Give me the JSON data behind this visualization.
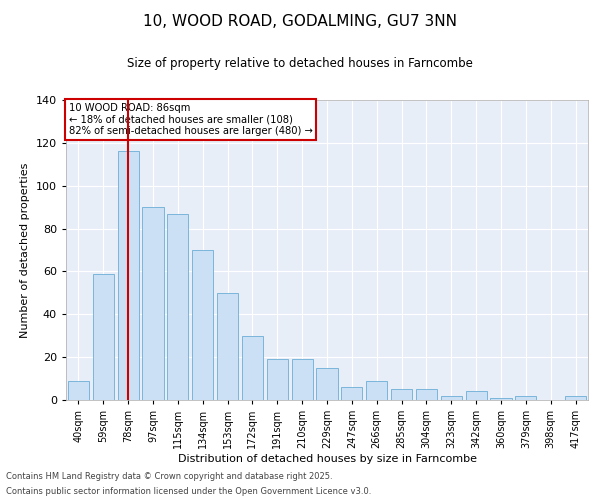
{
  "title": "10, WOOD ROAD, GODALMING, GU7 3NN",
  "subtitle": "Size of property relative to detached houses in Farncombe",
  "xlabel": "Distribution of detached houses by size in Farncombe",
  "ylabel": "Number of detached properties",
  "categories": [
    "40sqm",
    "59sqm",
    "78sqm",
    "97sqm",
    "115sqm",
    "134sqm",
    "153sqm",
    "172sqm",
    "191sqm",
    "210sqm",
    "229sqm",
    "247sqm",
    "266sqm",
    "285sqm",
    "304sqm",
    "323sqm",
    "342sqm",
    "360sqm",
    "379sqm",
    "398sqm",
    "417sqm"
  ],
  "bar_heights": [
    9,
    59,
    116,
    90,
    87,
    70,
    50,
    30,
    19,
    19,
    15,
    6,
    9,
    5,
    5,
    2,
    4,
    1,
    2,
    0,
    2
  ],
  "ylim": [
    0,
    140
  ],
  "yticks": [
    0,
    20,
    40,
    60,
    80,
    100,
    120,
    140
  ],
  "bar_color": "#cce0f5",
  "bar_edge_color": "#6aaed6",
  "red_line_index": 2,
  "annotation_title": "10 WOOD ROAD: 86sqm",
  "annotation_line1": "← 18% of detached houses are smaller (108)",
  "annotation_line2": "82% of semi-detached houses are larger (480) →",
  "annotation_box_color": "#ffffff",
  "annotation_box_edge": "#cc0000",
  "plot_bg_color": "#e8eef8",
  "footer_line1": "Contains HM Land Registry data © Crown copyright and database right 2025.",
  "footer_line2": "Contains public sector information licensed under the Open Government Licence v3.0."
}
